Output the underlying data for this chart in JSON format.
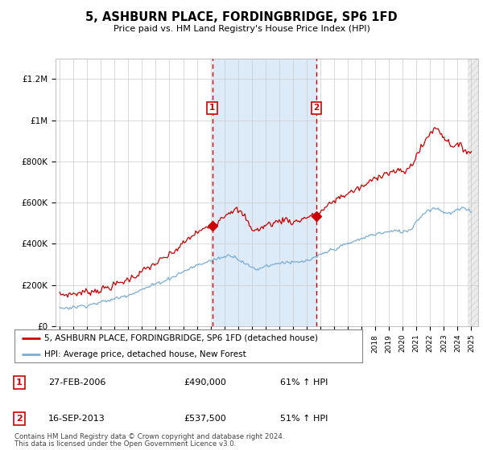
{
  "title": "5, ASHBURN PLACE, FORDINGBRIDGE, SP6 1FD",
  "subtitle": "Price paid vs. HM Land Registry's House Price Index (HPI)",
  "ylim": [
    0,
    1300000
  ],
  "yticks": [
    0,
    200000,
    400000,
    600000,
    800000,
    1000000,
    1200000
  ],
  "ytick_labels": [
    "£0",
    "£200K",
    "£400K",
    "£600K",
    "£800K",
    "£1M",
    "£1.2M"
  ],
  "transaction1_date": "27-FEB-2006",
  "transaction1_price": "£490,000",
  "transaction1_pct": "61% ↑ HPI",
  "transaction2_date": "16-SEP-2013",
  "transaction2_price": "£537,500",
  "transaction2_pct": "51% ↑ HPI",
  "legend1": "5, ASHBURN PLACE, FORDINGBRIDGE, SP6 1FD (detached house)",
  "legend2": "HPI: Average price, detached house, New Forest",
  "footnote1": "Contains HM Land Registry data © Crown copyright and database right 2024.",
  "footnote2": "This data is licensed under the Open Government Licence v3.0.",
  "property_color": "#cc0000",
  "hpi_color": "#7aadd4",
  "shade_color": "#ddeaf7",
  "vline_color": "#cc0000",
  "marker_box_color": "#cc0000",
  "grid_color": "#cccccc",
  "bg_color": "#ffffff",
  "t1_x": 2006.12,
  "t2_x": 2013.71,
  "xlim_start": 1994.7,
  "xlim_end": 2025.5,
  "hatch_start": 2024.75
}
